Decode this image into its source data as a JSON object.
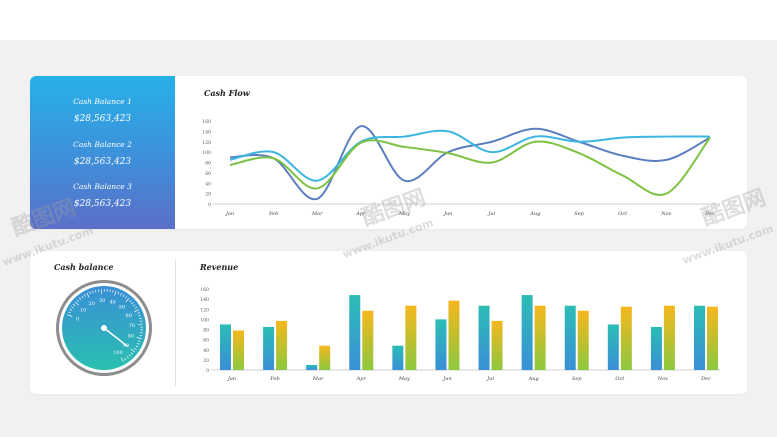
{
  "balances": [
    {
      "label": "Cash Balance 1",
      "value": "$28,563,423"
    },
    {
      "label": "Cash Balance 2",
      "value": "$28,563,423"
    },
    {
      "label": "Cash Balance 3",
      "value": "$28,563,423"
    }
  ],
  "cash_flow": {
    "title": "Cash Flow"
  },
  "gauge": {
    "title": "Cash balance",
    "ticks": [
      "0",
      "10",
      "20",
      "30",
      "40",
      "50",
      "60",
      "70",
      "80",
      "90",
      "100"
    ],
    "needle_value": 90
  },
  "revenue": {
    "title": "Revenue"
  },
  "watermark": {
    "brand": "酷图网",
    "url": "www.ikutu.com"
  },
  "colors": {
    "blue_line": "#5b7fc0",
    "cyan_line": "#3cb6e0",
    "green_line": "#7dc242",
    "bar_teal": "#2bbdb5",
    "bar_yellow": "#f3c020"
  },
  "chart_data": [
    {
      "type": "line",
      "title": "Cash Flow",
      "categories": [
        "Jan",
        "Feb",
        "Mar",
        "Apr",
        "May",
        "Jun",
        "Jul",
        "Aug",
        "Sep",
        "Oct",
        "Nov",
        "Dec"
      ],
      "ylim": [
        0,
        160
      ],
      "yticks": [
        0,
        20,
        40,
        60,
        80,
        100,
        120,
        140,
        160
      ],
      "series": [
        {
          "values": [
            90,
            88,
            10,
            150,
            45,
            100,
            120,
            145,
            120,
            93,
            85,
            128
          ]
        },
        {
          "values": [
            85,
            100,
            45,
            120,
            130,
            140,
            100,
            130,
            120,
            128,
            130,
            130
          ]
        },
        {
          "values": [
            75,
            88,
            30,
            118,
            110,
            98,
            80,
            120,
            98,
            55,
            20,
            128
          ]
        }
      ]
    },
    {
      "type": "bar",
      "title": "Revenue",
      "categories": [
        "Jan",
        "Feb",
        "Mar",
        "Apr",
        "May",
        "Jun",
        "Jul",
        "Aug",
        "Sep",
        "Oct",
        "Nov",
        "Dec"
      ],
      "ylim": [
        0,
        160
      ],
      "yticks": [
        0,
        20,
        40,
        60,
        80,
        100,
        120,
        140,
        160
      ],
      "series": [
        {
          "values": [
            90,
            85,
            10,
            148,
            48,
            100,
            127,
            148,
            127,
            90,
            85,
            127
          ]
        },
        {
          "values": [
            78,
            97,
            48,
            117,
            127,
            137,
            97,
            127,
            117,
            125,
            127,
            125
          ]
        }
      ]
    }
  ]
}
